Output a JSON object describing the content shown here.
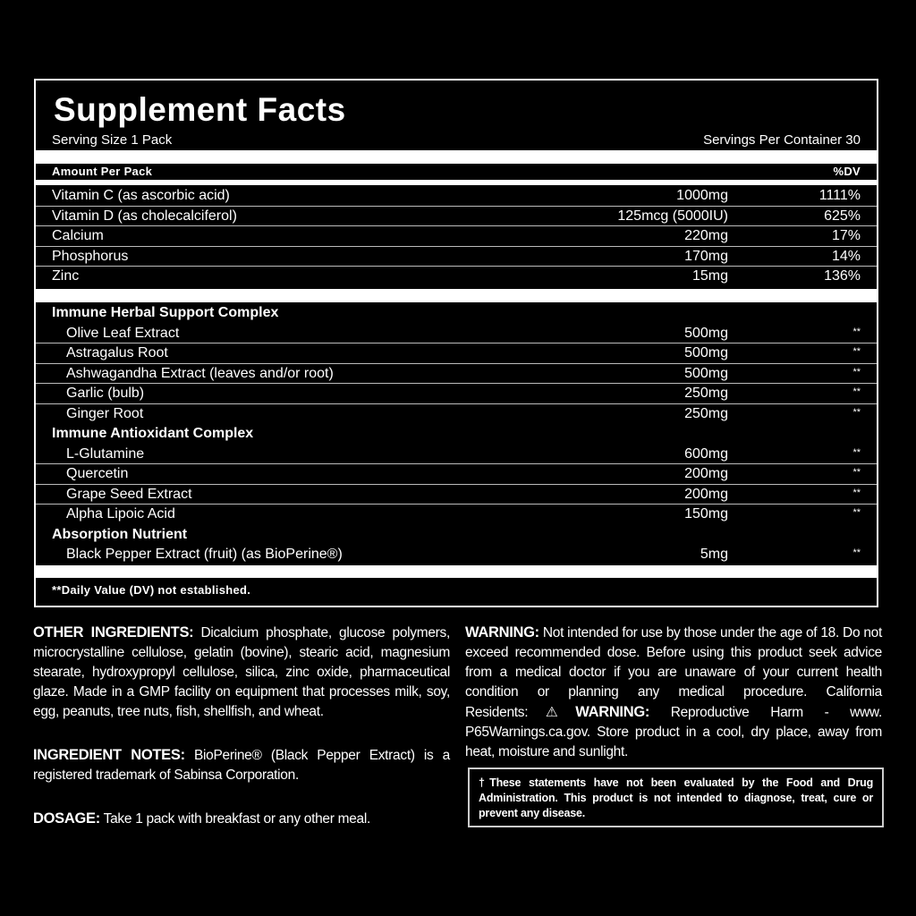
{
  "facts": {
    "title": "Supplement Facts",
    "serving_size": "Serving Size 1 Pack",
    "servings_per_container": "Servings Per Container 30",
    "amount_header": "Amount Per Pack",
    "dv_header": "%DV",
    "nutrients": [
      {
        "name": "Vitamin C (as ascorbic acid)",
        "amount": "1000mg",
        "dv": "1111%"
      },
      {
        "name": "Vitamin D (as cholecalciferol)",
        "amount": "125mcg (5000IU)",
        "dv": "625%"
      },
      {
        "name": "Calcium",
        "amount": "220mg",
        "dv": "17%"
      },
      {
        "name": "Phosphorus",
        "amount": "170mg",
        "dv": "14%"
      },
      {
        "name": "Zinc",
        "amount": "15mg",
        "dv": "136%"
      }
    ],
    "sections": [
      {
        "title": "Immune Herbal Support Complex",
        "items": [
          {
            "name": "Olive Leaf Extract",
            "amount": "500mg",
            "dv": "**"
          },
          {
            "name": "Astragalus Root",
            "amount": "500mg",
            "dv": "**"
          },
          {
            "name": "Ashwagandha Extract (leaves and/or root)",
            "amount": "500mg",
            "dv": "**"
          },
          {
            "name": "Garlic (bulb)",
            "amount": "250mg",
            "dv": "**"
          },
          {
            "name": "Ginger Root",
            "amount": "250mg",
            "dv": "**"
          }
        ]
      },
      {
        "title": "Immune Antioxidant Complex",
        "items": [
          {
            "name": "L-Glutamine",
            "amount": "600mg",
            "dv": "**"
          },
          {
            "name": "Quercetin",
            "amount": "200mg",
            "dv": "**"
          },
          {
            "name": "Grape Seed Extract",
            "amount": "200mg",
            "dv": "**"
          },
          {
            "name": "Alpha Lipoic Acid",
            "amount": "150mg",
            "dv": "**"
          }
        ]
      },
      {
        "title": "Absorption Nutrient",
        "items": [
          {
            "name": "Black Pepper Extract (fruit) (as BioPerine®)",
            "amount": "5mg",
            "dv": "**"
          }
        ]
      }
    ],
    "footnote": "**Daily Value (DV) not established."
  },
  "other_ingredients": {
    "label": "OTHER INGREDIENTS:",
    "text": "Dicalcium phosphate, glucose polymers, microcrystalline cellulose, gelatin (bovine), stearic acid, magnesium stearate, hydroxypropyl cellulose, silica, zinc oxide, pharmaceutical glaze. Made in a GMP facility on equipment that processes milk, soy, egg, peanuts, tree nuts, fish, shellfish, and wheat."
  },
  "ingredient_notes": {
    "label": "INGREDIENT NOTES:",
    "text": "BioPerine® (Black Pepper Extract) is a registered trademark of Sabinsa Corporation."
  },
  "dosage": {
    "label": "DOSAGE:",
    "text": "Take 1 pack with breakfast or any other meal."
  },
  "warning": {
    "label": "WARNING:",
    "text": "Not intended for use by those under the age of 18. Do not exceed recommended dose. Before using this product seek advice from a medical doctor if you are unaware of your current health condition or planning any medical procedure. California Residents:",
    "prop65_icon": "warning-triangle-icon",
    "prop65_label": "WARNING:",
    "text2": "Reproductive Harm - www. P65Warnings.ca.gov. Store product in a cool, dry place, away from heat, moisture and sunlight."
  },
  "disclaimer": "†These statements have not been evaluated by the Food and Drug Administration. This product is not intended to diagnose, treat, cure or prevent any disease."
}
